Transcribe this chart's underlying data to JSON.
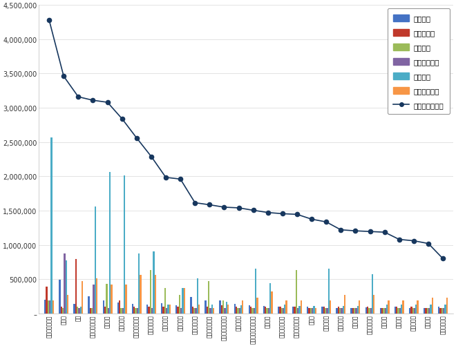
{
  "brands": [
    "오스템임플란트",
    "인바디",
    "디오",
    "메디톡스대시스",
    "웰스멘스",
    "유원바이오",
    "바우아이트리아",
    "우노믹로메딕",
    "지트로메딕",
    "인트로메딕",
    "셀루메디지털",
    "마이크로디지털",
    "아이센스드로닉스",
    "루트로닉스",
    "브랜드조이노베이션",
    "의조이스",
    "지시이노베이션",
    "시너지노베이션",
    "디너의",
    "신헬스케어",
    "세오메디컬",
    "세총메디",
    "제이브이래온",
    "우리수레",
    "레이언트",
    "네오아이다",
    "아스나비",
    "이녹신자연스"
  ],
  "참여지수": [
    200000,
    490000,
    140000,
    250000,
    190000,
    160000,
    140000,
    130000,
    150000,
    120000,
    240000,
    190000,
    190000,
    140000,
    120000,
    110000,
    95000,
    95000,
    95000,
    95000,
    75000,
    75000,
    85000,
    75000,
    95000,
    75000,
    75000,
    95000
  ],
  "미디어지수": [
    390000,
    95000,
    790000,
    75000,
    95000,
    185000,
    95000,
    95000,
    95000,
    95000,
    95000,
    95000,
    115000,
    95000,
    95000,
    95000,
    95000,
    95000,
    75000,
    95000,
    95000,
    75000,
    95000,
    75000,
    95000,
    95000,
    75000,
    75000
  ],
  "소통지수": [
    185000,
    75000,
    95000,
    75000,
    430000,
    75000,
    75000,
    630000,
    370000,
    270000,
    75000,
    470000,
    185000,
    75000,
    75000,
    75000,
    75000,
    630000,
    75000,
    75000,
    75000,
    75000,
    75000,
    75000,
    75000,
    75000,
    75000,
    75000
  ],
  "커뮤니티지수": [
    185000,
    870000,
    75000,
    420000,
    75000,
    75000,
    75000,
    75000,
    75000,
    75000,
    75000,
    75000,
    75000,
    75000,
    75000,
    75000,
    75000,
    75000,
    75000,
    75000,
    75000,
    75000,
    75000,
    75000,
    75000,
    75000,
    75000,
    75000
  ],
  "시장지수": [
    2570000,
    770000,
    95000,
    1560000,
    2060000,
    2010000,
    870000,
    900000,
    125000,
    370000,
    515000,
    125000,
    170000,
    115000,
    655000,
    445000,
    125000,
    105000,
    105000,
    650000,
    105000,
    105000,
    570000,
    125000,
    125000,
    125000,
    125000,
    125000
  ],
  "사회공헌지수": [
    185000,
    275000,
    470000,
    515000,
    420000,
    420000,
    565000,
    565000,
    125000,
    370000,
    125000,
    75000,
    125000,
    185000,
    225000,
    325000,
    185000,
    185000,
    75000,
    185000,
    275000,
    185000,
    275000,
    185000,
    185000,
    185000,
    225000,
    225000
  ],
  "브랜드평판지수": [
    4280000,
    3460000,
    3160000,
    3110000,
    3080000,
    2840000,
    2560000,
    2290000,
    1985000,
    1960000,
    1615000,
    1585000,
    1550000,
    1540000,
    1505000,
    1472000,
    1455000,
    1445000,
    1375000,
    1335000,
    1220000,
    1205000,
    1195000,
    1185000,
    1080000,
    1060000,
    1020000,
    800000
  ],
  "colors": {
    "참여지수": "#4472c4",
    "미디어지수": "#c0392b",
    "소통지수": "#9bbb59",
    "커뮤니티지수": "#8064a2",
    "시장지수": "#4bacc6",
    "사회공헌지수": "#f79646",
    "브랜드평판지수": "#17375e"
  }
}
